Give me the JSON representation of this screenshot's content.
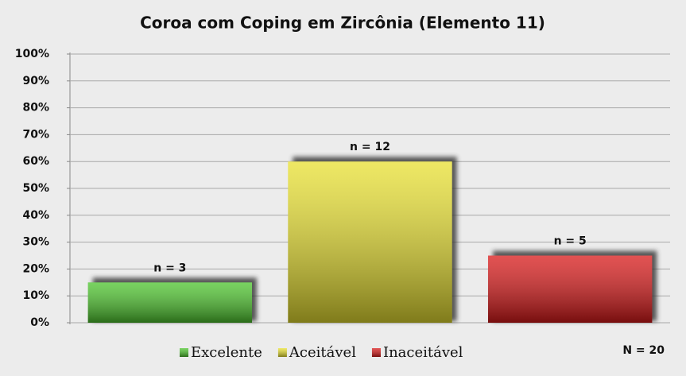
{
  "chart_data": {
    "type": "bar",
    "title": "Coroa com Coping em Zircônia (Elemento 11)",
    "categories": [
      "Excelente",
      "Aceitável",
      "Inaceitável"
    ],
    "values": [
      15,
      60,
      25
    ],
    "colors": [
      "#4cc42c",
      "#e8e030",
      "#d81818"
    ],
    "annotations": [
      "n = 3",
      "n = 12",
      "n = 5"
    ],
    "total_label": "N = 20",
    "ylim": [
      0,
      100
    ],
    "yticks": [
      {
        "value": 0,
        "label": "0%"
      },
      {
        "value": 10,
        "label": "10%"
      },
      {
        "value": 20,
        "label": "20%"
      },
      {
        "value": 30,
        "label": "30%"
      },
      {
        "value": 40,
        "label": "40%"
      },
      {
        "value": 50,
        "label": "50%"
      },
      {
        "value": 60,
        "label": "60%"
      },
      {
        "value": 70,
        "label": "70%"
      },
      {
        "value": 80,
        "label": "80%"
      },
      {
        "value": 90,
        "label": "90%"
      },
      {
        "value": 100,
        "label": "100%"
      }
    ],
    "grid": true,
    "legend": "bottom"
  }
}
